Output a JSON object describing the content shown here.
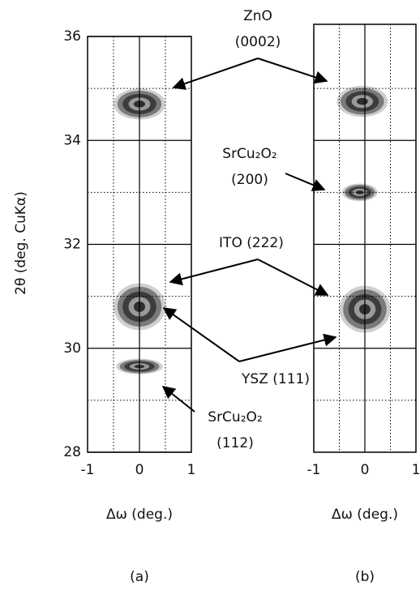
{
  "chart_data": [
    {
      "type": "contour",
      "label": "(a)",
      "xlabel": "Δω (deg.)",
      "ylabel": "2θ (deg. CuKα)",
      "xlim": [
        -1,
        1
      ],
      "ylim": [
        28,
        36
      ],
      "xticks": [
        -1,
        0,
        1
      ],
      "yticks": [
        28,
        30,
        32,
        34,
        36
      ],
      "minor_xticks": [
        -0.5,
        0.5
      ],
      "minor_yticks": [
        29,
        31,
        33,
        35
      ],
      "grid": true,
      "x": [
        0,
        0,
        0
      ],
      "values": [
        34.7,
        30.8,
        29.65
      ],
      "x_halfwidth": [
        0.5,
        0.5,
        0.45
      ],
      "y_halfwidth": [
        0.3,
        0.45,
        0.15
      ]
    },
    {
      "type": "contour",
      "label": "(b)",
      "xlabel": "Δω (deg.)",
      "xlim": [
        -1,
        1
      ],
      "ylim": [
        28,
        36
      ],
      "xticks": [
        -1,
        0,
        1
      ],
      "minor_xticks": [
        -0.5,
        0.5
      ],
      "minor_yticks": [
        29,
        31,
        33,
        35
      ],
      "grid_yticks": [
        30,
        32,
        34
      ],
      "grid": true,
      "x": [
        -0.05,
        -0.1,
        0
      ],
      "values": [
        34.75,
        33.0,
        30.75
      ],
      "x_halfwidth": [
        0.5,
        0.35,
        0.5
      ],
      "y_halfwidth": [
        0.3,
        0.17,
        0.45
      ]
    }
  ],
  "annotations": [
    [
      "ZnO",
      "(0002)"
    ],
    [
      "SrCu₂O₂",
      "(200)"
    ],
    [
      "ITO (222)"
    ],
    [
      "YSZ (111)"
    ],
    [
      "SrCu₂O₂",
      "(112)"
    ]
  ]
}
